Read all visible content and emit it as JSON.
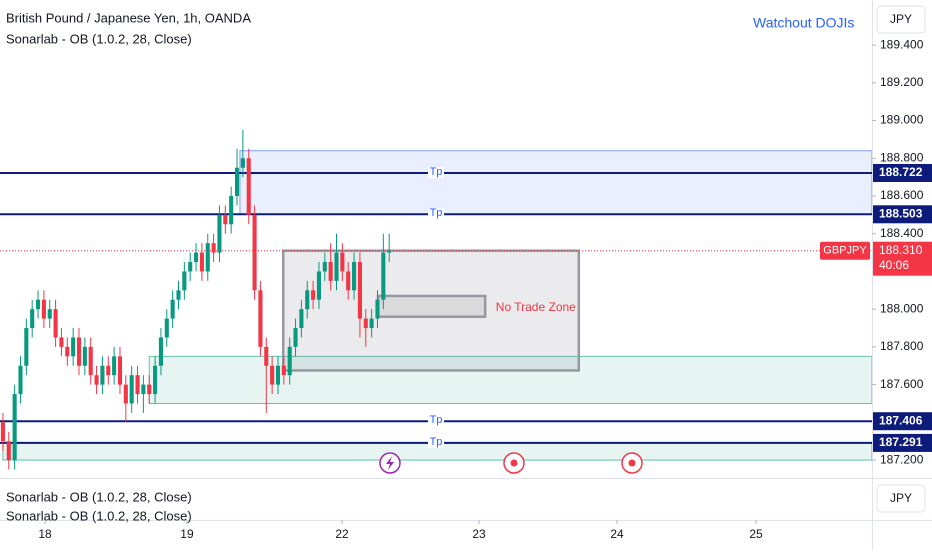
{
  "chart_data": {
    "type": "candlestick",
    "title": "British Pound / Japanese Yen, 1h, OANDA",
    "subtitle": "Sonarlab - OB (1.0.2, 28, Close)",
    "annotation": "Watchout DOJIs",
    "currency": "JPY",
    "up_color": "#089981",
    "down_color": "#f23645",
    "x": [
      0,
      1,
      2,
      3,
      4,
      5,
      6,
      7,
      8,
      9,
      10,
      11,
      12,
      13,
      14,
      15,
      16,
      17,
      18,
      19,
      20,
      21,
      22,
      23,
      24,
      25,
      26,
      27,
      28,
      29,
      30,
      31,
      32,
      33,
      34,
      35,
      36,
      37,
      38,
      39,
      40,
      41,
      42,
      43,
      44,
      45,
      46,
      47,
      48,
      49,
      50,
      51,
      52,
      53,
      54,
      55,
      56,
      57,
      58,
      59,
      60,
      61,
      62,
      63,
      64,
      65,
      66
    ],
    "open": [
      187.4,
      187.3,
      187.2,
      187.55,
      187.7,
      187.9,
      188.0,
      188.05,
      187.95,
      188.0,
      187.85,
      187.8,
      187.75,
      187.85,
      187.7,
      187.8,
      187.65,
      187.6,
      187.7,
      187.65,
      187.75,
      187.6,
      187.5,
      187.65,
      187.55,
      187.6,
      187.55,
      187.7,
      187.85,
      187.95,
      188.05,
      188.1,
      188.2,
      188.25,
      188.3,
      188.2,
      188.35,
      188.3,
      188.5,
      188.45,
      188.6,
      188.75,
      188.8,
      188.5,
      188.1,
      187.8,
      187.7,
      187.6,
      187.7,
      187.65,
      187.8,
      187.9,
      188.0,
      188.1,
      188.05,
      188.2,
      188.25,
      188.15,
      188.3,
      188.2,
      188.1,
      188.25,
      187.95,
      187.9,
      187.95,
      188.05,
      188.3
    ],
    "high": [
      187.45,
      187.35,
      187.6,
      187.75,
      187.95,
      188.05,
      188.1,
      188.1,
      188.05,
      188.05,
      187.9,
      187.85,
      187.9,
      187.9,
      187.85,
      187.85,
      187.7,
      187.75,
      187.75,
      187.8,
      187.8,
      187.65,
      187.7,
      187.7,
      187.65,
      187.65,
      187.75,
      187.9,
      188.0,
      188.1,
      188.15,
      188.25,
      188.3,
      188.35,
      188.35,
      188.4,
      188.4,
      188.55,
      188.55,
      188.65,
      188.85,
      188.95,
      188.85,
      188.55,
      188.15,
      187.85,
      187.75,
      187.75,
      187.75,
      187.85,
      187.95,
      188.05,
      188.15,
      188.15,
      188.25,
      188.3,
      188.35,
      188.4,
      188.35,
      188.25,
      188.3,
      188.3,
      188.0,
      188.0,
      188.1,
      188.4,
      188.4
    ],
    "low": [
      187.25,
      187.15,
      187.15,
      187.5,
      187.65,
      187.85,
      187.95,
      187.9,
      187.9,
      187.8,
      187.75,
      187.7,
      187.7,
      187.65,
      187.65,
      187.6,
      187.55,
      187.55,
      187.6,
      187.6,
      187.55,
      187.4,
      187.45,
      187.5,
      187.45,
      187.5,
      187.5,
      187.65,
      187.8,
      187.9,
      188.0,
      188.05,
      188.15,
      188.2,
      188.15,
      188.15,
      188.25,
      188.25,
      188.4,
      188.4,
      188.55,
      188.7,
      188.45,
      188.05,
      187.75,
      187.45,
      187.55,
      187.55,
      187.6,
      187.6,
      187.75,
      187.85,
      187.95,
      188.0,
      188.0,
      188.15,
      188.1,
      188.1,
      188.15,
      188.05,
      188.05,
      187.85,
      187.8,
      187.85,
      187.9,
      188.0,
      188.25
    ],
    "close": [
      187.3,
      187.2,
      187.55,
      187.7,
      187.9,
      188.0,
      188.05,
      187.95,
      188.0,
      187.85,
      187.8,
      187.75,
      187.85,
      187.7,
      187.8,
      187.65,
      187.6,
      187.7,
      187.65,
      187.75,
      187.6,
      187.5,
      187.65,
      187.55,
      187.6,
      187.55,
      187.7,
      187.85,
      187.95,
      188.05,
      188.1,
      188.2,
      188.25,
      188.3,
      188.2,
      188.35,
      188.3,
      188.5,
      188.45,
      188.6,
      188.75,
      188.8,
      188.5,
      188.1,
      187.8,
      187.7,
      187.6,
      187.7,
      187.65,
      187.8,
      187.9,
      188.0,
      188.1,
      188.05,
      188.2,
      188.25,
      188.15,
      188.3,
      188.2,
      188.1,
      188.25,
      187.95,
      187.9,
      187.95,
      188.05,
      188.3,
      188.31
    ],
    "xlim": [
      -0.5,
      148.5
    ],
    "xticks": [
      {
        "value": 7.19,
        "label": "18"
      },
      {
        "value": 31.45,
        "label": "19"
      },
      {
        "value": 57.94,
        "label": "22"
      },
      {
        "value": 81.35,
        "label": "23"
      },
      {
        "value": 104.93,
        "label": "24"
      },
      {
        "value": 128.68,
        "label": "25"
      }
    ],
    "ylim": [
      187.105,
      189.639
    ],
    "yticks": [
      {
        "value": 189.4,
        "label": "189.400"
      },
      {
        "value": 189.2,
        "label": "189.200"
      },
      {
        "value": 189.0,
        "label": "189.000"
      },
      {
        "value": 188.8,
        "label": "188.800"
      },
      {
        "value": 188.6,
        "label": "188.600"
      },
      {
        "value": 188.4,
        "label": "188.400"
      },
      {
        "value": 188.0,
        "label": "188.000"
      },
      {
        "value": 187.8,
        "label": "187.800"
      },
      {
        "value": 187.6,
        "label": "187.600"
      },
      {
        "value": 187.2,
        "label": "187.200"
      }
    ],
    "levels": [
      {
        "value": 188.722,
        "text": "Tp"
      },
      {
        "value": 188.503,
        "text": "Tp"
      },
      {
        "value": 187.406,
        "text": "Tp"
      },
      {
        "value": 187.291,
        "text": "Tp"
      }
    ],
    "level_color": "#0d1b7a",
    "zones": [
      {
        "x_start": 40.5,
        "from": 188.503,
        "to": 188.84,
        "color": "#2962ff"
      },
      {
        "x_start": 25,
        "from": 187.5,
        "to": 187.75,
        "color": "#089981"
      },
      {
        "x_start": 0,
        "from": 187.2,
        "to": 187.29,
        "color": "#089981"
      }
    ],
    "boxes": [
      {
        "x_start": 47.9,
        "x_end": 98.4,
        "top": 188.31,
        "bottom": 187.675,
        "text": "No Trade Zone"
      },
      {
        "x_start": 64.1,
        "x_end": 82.4,
        "top": 188.07,
        "bottom": 187.96
      }
    ],
    "last_price": {
      "symbol": "GBPJPY",
      "value": 188.31,
      "label": "188.310",
      "countdown": "40:06"
    },
    "lower_pane": {
      "indicators": [
        "Sonarlab - OB (1.0.2, 28, Close)",
        "Sonarlab - OB (1.0.2, 28, Close)"
      ],
      "currency": "JPY"
    }
  }
}
